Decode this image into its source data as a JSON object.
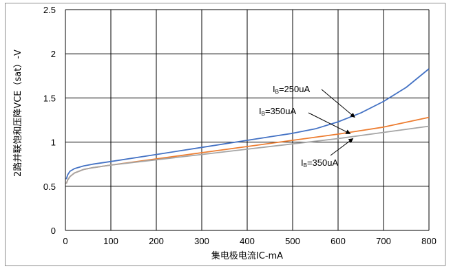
{
  "chart_data": {
    "type": "line",
    "xlabel": "集电极电流IC-mA",
    "ylabel": "2路并联饱和压降VCE（sat）-V",
    "xlim": [
      0,
      800
    ],
    "ylim": [
      0,
      2.5
    ],
    "xticks": [
      "0",
      "100",
      "200",
      "300",
      "400",
      "500",
      "600",
      "700",
      "800"
    ],
    "yticks": [
      "0",
      "0.5",
      "1",
      "1.5",
      "2",
      "2.5"
    ],
    "grid": true,
    "series": [
      {
        "name": "IB=250uA",
        "color": "#4472C4",
        "x": [
          2,
          5,
          10,
          20,
          40,
          60,
          100,
          200,
          300,
          400,
          450,
          500,
          550,
          600,
          650,
          700,
          750,
          800
        ],
        "y": [
          0.58,
          0.63,
          0.67,
          0.7,
          0.73,
          0.75,
          0.78,
          0.86,
          0.94,
          1.02,
          1.06,
          1.1,
          1.15,
          1.23,
          1.33,
          1.46,
          1.62,
          1.83
        ]
      },
      {
        "name": "IB=350uA",
        "color": "#ED7D31",
        "x": [
          2,
          5,
          10,
          20,
          40,
          60,
          100,
          200,
          300,
          400,
          500,
          600,
          700,
          800
        ],
        "y": [
          0.53,
          0.57,
          0.61,
          0.65,
          0.69,
          0.71,
          0.74,
          0.81,
          0.88,
          0.95,
          1.02,
          1.09,
          1.17,
          1.28
        ]
      },
      {
        "name": "IB=350uA",
        "color": "#A5A5A5",
        "x": [
          2,
          5,
          10,
          20,
          40,
          60,
          100,
          200,
          300,
          400,
          500,
          600,
          700,
          800
        ],
        "y": [
          0.53,
          0.57,
          0.61,
          0.65,
          0.69,
          0.71,
          0.74,
          0.8,
          0.86,
          0.92,
          0.98,
          1.04,
          1.11,
          1.18
        ]
      }
    ],
    "annotations": [
      {
        "label_main": "I",
        "label_sub": "B",
        "label_rest": "=250uA",
        "series": 0,
        "point_x": 655
      },
      {
        "label_main": "I",
        "label_sub": "B",
        "label_rest": "=350uA",
        "series": 1,
        "point_x": 645
      },
      {
        "label_main": "I",
        "label_sub": "B",
        "label_rest": "=350uA",
        "series": 2,
        "point_x": 645
      }
    ]
  }
}
